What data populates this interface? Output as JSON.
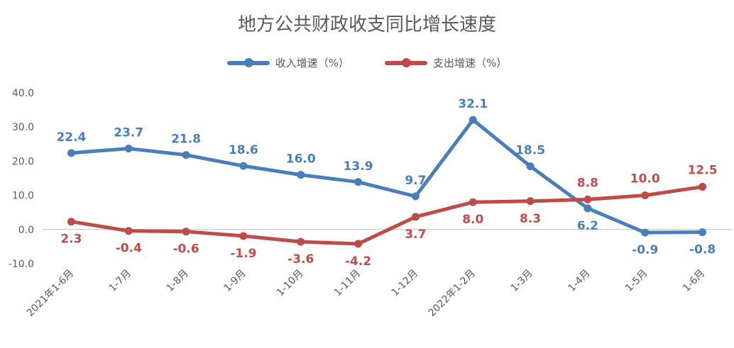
{
  "chart_data": {
    "type": "line",
    "title": "地方公共财政收支同比增长速度",
    "categories": [
      "2021年1-6月",
      "1-7月",
      "1-8月",
      "1-9月",
      "1-10月",
      "1-11月",
      "1-12月",
      "2022年1-2月",
      "1-3月",
      "1-4月",
      "1-5月",
      "1-6月"
    ],
    "series": [
      {
        "name": "收入增速（%）",
        "color": "#4A7EBB",
        "values": [
          22.4,
          23.7,
          21.8,
          18.6,
          16.0,
          13.9,
          9.7,
          32.1,
          18.5,
          6.2,
          -0.9,
          -0.8
        ],
        "labels": [
          "22.4",
          "23.7",
          "21.8",
          "18.6",
          "16.0",
          "13.9",
          "9.7",
          "32.1",
          "18.5",
          "6.2",
          "-0.9",
          "-0.8"
        ]
      },
      {
        "name": "支出增速（%）",
        "color": "#BE4B48",
        "values": [
          2.3,
          -0.4,
          -0.6,
          -1.9,
          -3.6,
          -4.2,
          3.7,
          8.0,
          8.3,
          8.8,
          10.0,
          12.5
        ],
        "labels": [
          "2.3",
          "-0.4",
          "-0.6",
          "-1.9",
          "-3.6",
          "-4.2",
          "3.7",
          "8.0",
          "8.3",
          "8.8",
          "10.0",
          "12.5"
        ]
      }
    ],
    "ylim": [
      -10,
      40
    ],
    "yticks": [
      "-10.0",
      "0.0",
      "10.0",
      "20.0",
      "30.0",
      "40.0"
    ],
    "grid": false,
    "legend_position": "top-center"
  }
}
